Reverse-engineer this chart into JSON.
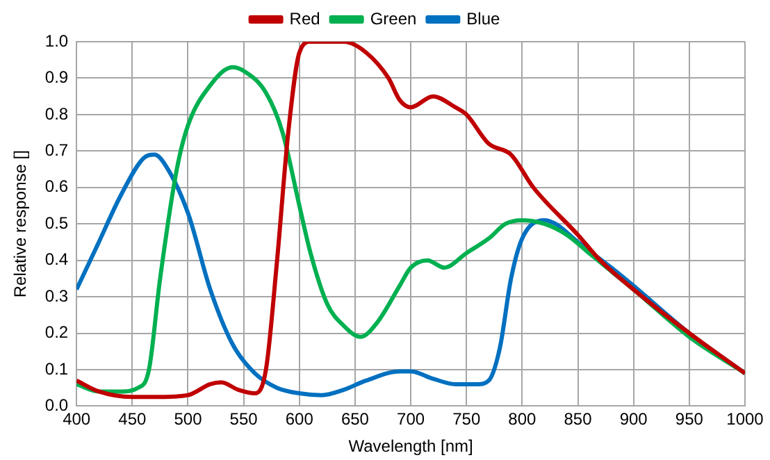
{
  "chart_data": {
    "type": "line",
    "xlabel": "Wavelength [nm]",
    "ylabel": "Relative response []",
    "xlim": [
      400,
      1000
    ],
    "xticks": [
      400,
      450,
      500,
      550,
      600,
      650,
      700,
      750,
      800,
      850,
      900,
      950,
      1000
    ],
    "ylim": [
      0,
      1
    ],
    "yticks": [
      {
        "value": 0,
        "label": "0.0"
      },
      0.1,
      0.2,
      0.3,
      0.4,
      0.5,
      0.6,
      0.7,
      0.8,
      0.9,
      {
        "value": 1,
        "label": "1.0"
      }
    ],
    "grid": true,
    "legend": "top",
    "marker": "none",
    "line_style": "solid",
    "series": [
      {
        "name": "Red",
        "color": "#c00000",
        "x": [
          400,
          420,
          450,
          475,
          500,
          520,
          530,
          545,
          560,
          570,
          580,
          590,
          600,
          610,
          640,
          660,
          680,
          690,
          700,
          720,
          740,
          750,
          770,
          790,
          810,
          850,
          870,
          900,
          950,
          1000
        ],
        "values": [
          0.07,
          0.04,
          0.025,
          0.025,
          0.03,
          0.06,
          0.065,
          0.045,
          0.035,
          0.1,
          0.4,
          0.75,
          0.97,
          1.0,
          1.0,
          0.97,
          0.9,
          0.84,
          0.82,
          0.85,
          0.82,
          0.8,
          0.72,
          0.69,
          0.6,
          0.47,
          0.4,
          0.32,
          0.2,
          0.09
        ]
      },
      {
        "name": "Green",
        "color": "#00b050",
        "x": [
          400,
          420,
          440,
          455,
          465,
          475,
          490,
          500,
          520,
          540,
          550,
          570,
          585,
          600,
          610,
          625,
          640,
          655,
          670,
          690,
          700,
          715,
          730,
          750,
          770,
          785,
          800,
          820,
          840,
          860,
          880,
          900,
          950,
          1000
        ],
        "values": [
          0.06,
          0.04,
          0.04,
          0.05,
          0.1,
          0.35,
          0.65,
          0.77,
          0.88,
          0.93,
          0.92,
          0.86,
          0.75,
          0.55,
          0.42,
          0.28,
          0.22,
          0.19,
          0.23,
          0.33,
          0.38,
          0.4,
          0.38,
          0.42,
          0.46,
          0.5,
          0.51,
          0.5,
          0.47,
          0.42,
          0.37,
          0.32,
          0.19,
          0.09
        ]
      },
      {
        "name": "Blue",
        "color": "#0070c0",
        "x": [
          400,
          420,
          440,
          460,
          470,
          480,
          500,
          520,
          540,
          560,
          580,
          600,
          620,
          640,
          660,
          690,
          700,
          720,
          740,
          760,
          770,
          780,
          790,
          800,
          820,
          830,
          850,
          880,
          900,
          950,
          1000
        ],
        "values": [
          0.32,
          0.45,
          0.58,
          0.68,
          0.69,
          0.66,
          0.53,
          0.32,
          0.17,
          0.09,
          0.05,
          0.035,
          0.03,
          0.045,
          0.07,
          0.095,
          0.095,
          0.075,
          0.06,
          0.06,
          0.07,
          0.16,
          0.35,
          0.46,
          0.51,
          0.5,
          0.45,
          0.38,
          0.33,
          0.2,
          0.09
        ]
      }
    ]
  }
}
